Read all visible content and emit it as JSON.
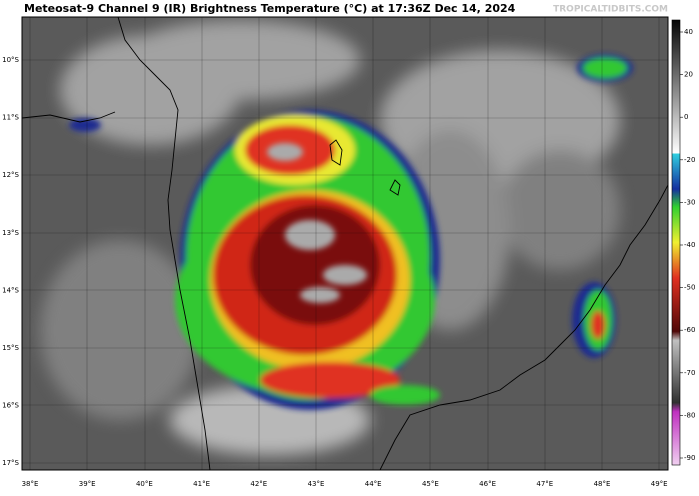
{
  "header": {
    "title": "Meteosat-9 Channel 9 (IR) Brightness Temperature (°C) at 17:36Z Dec 14, 2024",
    "credit": "TROPICALTIDBITS.COM"
  },
  "map": {
    "lat_labels": [
      "10°S",
      "11°S",
      "12°S",
      "13°S",
      "14°S",
      "15°S",
      "16°S",
      "17°S"
    ],
    "lon_labels": [
      "38°E",
      "39°E",
      "40°E",
      "41°E",
      "42°E",
      "43°E",
      "44°E",
      "45°E",
      "46°E",
      "47°E",
      "48°E",
      "49°E"
    ]
  },
  "colorbar": {
    "ticks": [
      40,
      20,
      0,
      -20,
      -30,
      -40,
      -50,
      -60,
      -70,
      -80,
      -90
    ]
  }
}
